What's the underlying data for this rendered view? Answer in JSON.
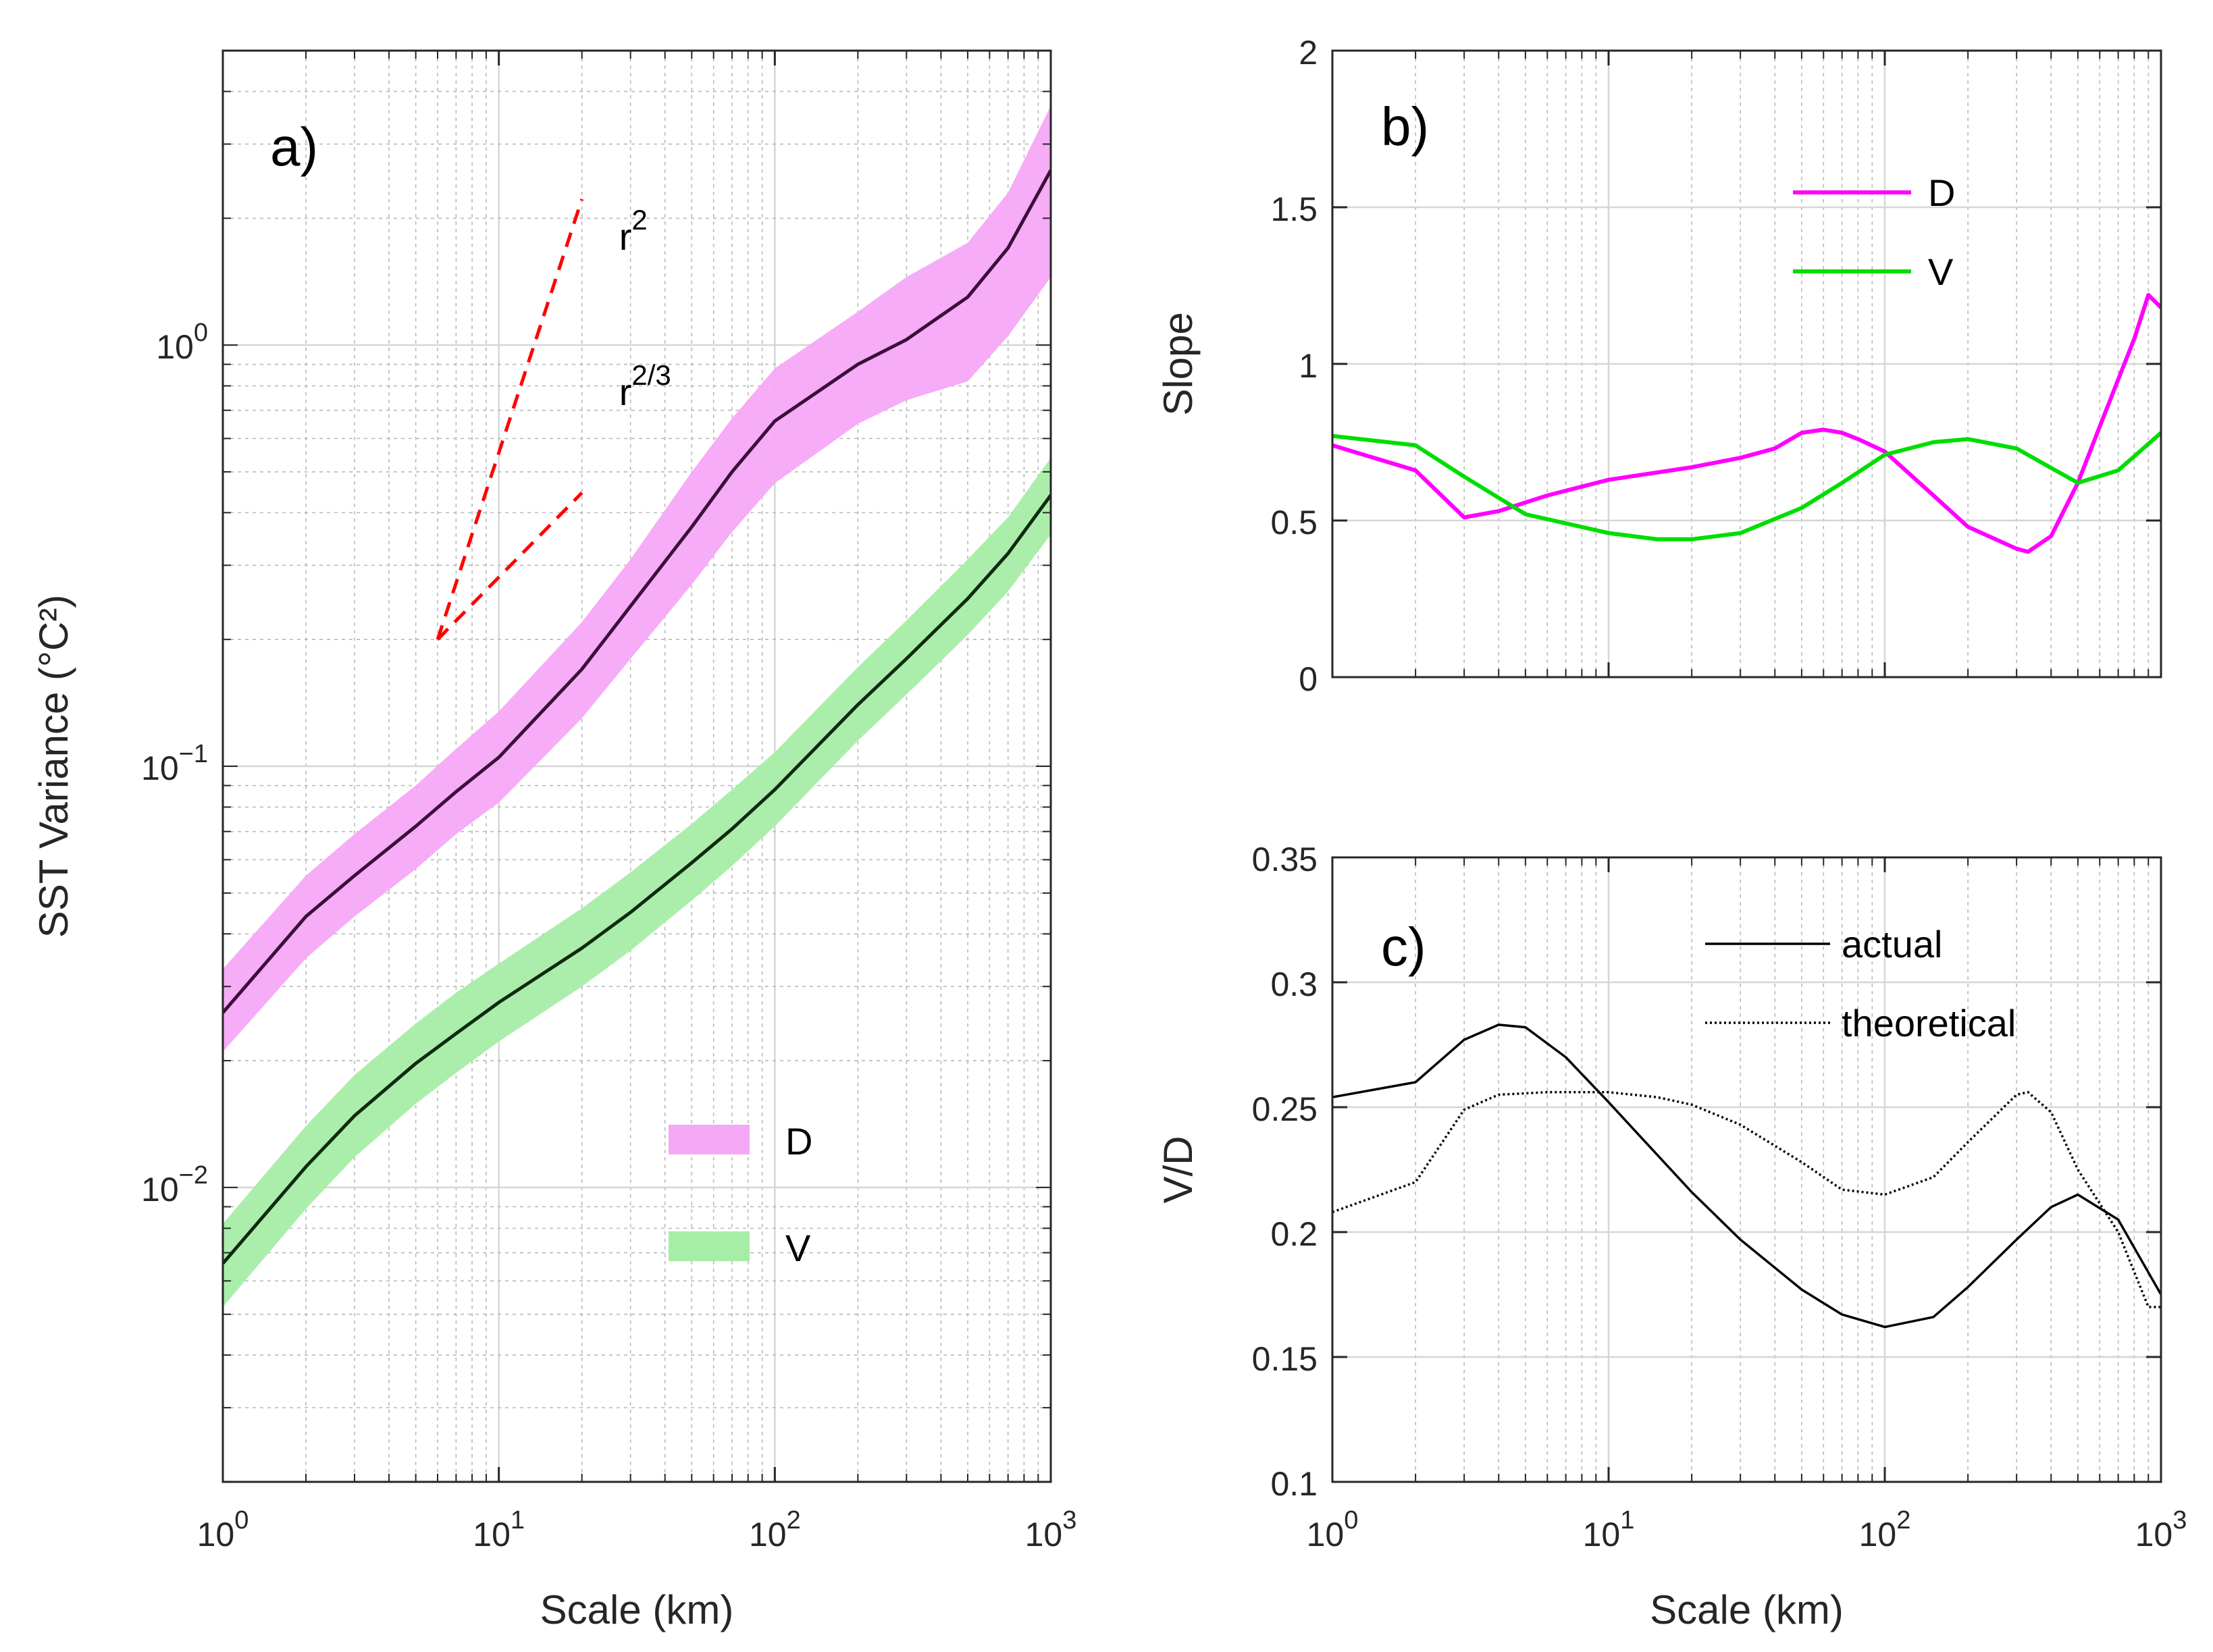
{
  "chart_data": [
    {
      "panel": "a)",
      "type": "line",
      "xscale": "log",
      "yscale": "log",
      "xlabel": "Scale (km)",
      "ylabel": "SST Variance (°C²)",
      "xlim": [
        1,
        1000
      ],
      "ylim": [
        0.002,
        5
      ],
      "xticks": [
        "10^0",
        "10^1",
        "10^2",
        "10^3"
      ],
      "yticks": [
        "10^-2",
        "10^-1",
        "10^0"
      ],
      "legend_position": "bottom-right",
      "series": [
        {
          "name": "D",
          "color": "#3a0f3a",
          "band_color": "#f5a8f5",
          "x": [
            1,
            2,
            3,
            5,
            7,
            10,
            20,
            30,
            50,
            70,
            100,
            200,
            300,
            500,
            700,
            1000
          ],
          "y": [
            0.026,
            0.044,
            0.055,
            0.072,
            0.087,
            0.105,
            0.17,
            0.24,
            0.37,
            0.5,
            0.66,
            0.9,
            1.03,
            1.3,
            1.7,
            2.6
          ],
          "lower": [
            0.021,
            0.035,
            0.044,
            0.057,
            0.069,
            0.082,
            0.13,
            0.18,
            0.27,
            0.36,
            0.47,
            0.65,
            0.74,
            0.82,
            1.05,
            1.45
          ],
          "upper": [
            0.033,
            0.055,
            0.069,
            0.09,
            0.11,
            0.135,
            0.22,
            0.31,
            0.5,
            0.67,
            0.88,
            1.2,
            1.45,
            1.75,
            2.3,
            3.7
          ]
        },
        {
          "name": "V",
          "color": "#0f2a0f",
          "band_color": "#a6eda6",
          "x": [
            1,
            2,
            3,
            5,
            7,
            10,
            20,
            30,
            50,
            70,
            100,
            200,
            300,
            500,
            700,
            1000
          ],
          "y": [
            0.0066,
            0.0112,
            0.0148,
            0.0197,
            0.0232,
            0.0275,
            0.037,
            0.045,
            0.059,
            0.071,
            0.088,
            0.14,
            0.18,
            0.25,
            0.32,
            0.44
          ],
          "lower": [
            0.0052,
            0.0089,
            0.0118,
            0.0158,
            0.0187,
            0.0222,
            0.03,
            0.0365,
            0.048,
            0.058,
            0.072,
            0.115,
            0.148,
            0.205,
            0.26,
            0.355
          ],
          "upper": [
            0.0082,
            0.014,
            0.0185,
            0.0245,
            0.029,
            0.034,
            0.046,
            0.056,
            0.073,
            0.088,
            0.108,
            0.172,
            0.222,
            0.31,
            0.39,
            0.54
          ]
        }
      ],
      "reference_lines": [
        {
          "label_base": "r",
          "label_exp": "2",
          "color": "#ff0000",
          "x": [
            6,
            20
          ],
          "y": [
            0.2,
            2.22
          ]
        },
        {
          "label_base": "r",
          "label_exp": "2/3",
          "color": "#ff0000",
          "x": [
            6,
            20
          ],
          "y": [
            0.2,
            0.446
          ]
        }
      ]
    },
    {
      "panel": "b)",
      "type": "line",
      "xscale": "log",
      "yscale": "linear",
      "xlabel": "",
      "ylabel": "Slope",
      "xlim": [
        1,
        1000
      ],
      "ylim": [
        0,
        2
      ],
      "yticks": [
        "0",
        "0.5",
        "1",
        "1.5",
        "2"
      ],
      "legend_position": "top-center",
      "series": [
        {
          "name": "D",
          "color": "#ff00ff",
          "x": [
            1,
            2,
            3,
            4,
            6,
            10,
            20,
            30,
            40,
            50,
            60,
            70,
            80,
            100,
            150,
            200,
            300,
            330,
            400,
            500,
            600,
            700,
            800,
            900,
            1000
          ],
          "y": [
            0.74,
            0.66,
            0.51,
            0.53,
            0.58,
            0.63,
            0.67,
            0.7,
            0.73,
            0.78,
            0.79,
            0.78,
            0.76,
            0.72,
            0.58,
            0.48,
            0.41,
            0.4,
            0.45,
            0.62,
            0.8,
            0.95,
            1.08,
            1.22,
            1.18
          ]
        },
        {
          "name": "V",
          "color": "#00dd00",
          "x": [
            1,
            2,
            3,
            5,
            10,
            15,
            20,
            30,
            50,
            70,
            100,
            150,
            200,
            300,
            500,
            700,
            1000
          ],
          "y": [
            0.77,
            0.74,
            0.64,
            0.52,
            0.46,
            0.44,
            0.44,
            0.46,
            0.54,
            0.62,
            0.71,
            0.75,
            0.76,
            0.73,
            0.62,
            0.66,
            0.78
          ]
        }
      ]
    },
    {
      "panel": "c)",
      "type": "line",
      "xscale": "log",
      "yscale": "linear",
      "xlabel": "Scale (km)",
      "ylabel": "V/D",
      "xlim": [
        1,
        1000
      ],
      "ylim": [
        0.1,
        0.35
      ],
      "xticks": [
        "10^0",
        "10^1",
        "10^2",
        "10^3"
      ],
      "yticks": [
        "0.1",
        "0.15",
        "0.2",
        "0.25",
        "0.3",
        "0.35"
      ],
      "legend_position": "top-right",
      "series": [
        {
          "name": "actual",
          "color": "#000000",
          "dash": "solid",
          "x": [
            1,
            2,
            3,
            4,
            5,
            7,
            10,
            20,
            30,
            50,
            70,
            100,
            150,
            200,
            300,
            400,
            500,
            700,
            1000
          ],
          "y": [
            0.254,
            0.26,
            0.277,
            0.283,
            0.282,
            0.27,
            0.252,
            0.216,
            0.197,
            0.177,
            0.167,
            0.162,
            0.166,
            0.178,
            0.197,
            0.21,
            0.215,
            0.205,
            0.175
          ]
        },
        {
          "name": "theoretical",
          "color": "#000000",
          "dash": "dotted",
          "x": [
            1,
            2,
            3,
            4,
            6,
            10,
            15,
            20,
            30,
            50,
            70,
            100,
            150,
            200,
            300,
            330,
            400,
            500,
            700,
            900,
            1000
          ],
          "y": [
            0.208,
            0.22,
            0.249,
            0.255,
            0.256,
            0.256,
            0.254,
            0.251,
            0.243,
            0.228,
            0.217,
            0.215,
            0.222,
            0.236,
            0.255,
            0.256,
            0.248,
            0.225,
            0.2,
            0.17,
            0.17
          ]
        }
      ]
    }
  ]
}
